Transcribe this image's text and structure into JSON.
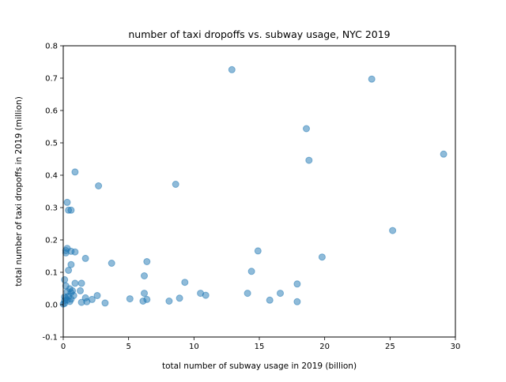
{
  "chart_data": {
    "type": "scatter",
    "title": "number of taxi dropoffs vs. subway usage, NYC 2019",
    "xlabel": "total number of subway usage in 2019 (billion)",
    "ylabel": "total number of taxi dropoffs in 2019 (million)",
    "xlim": [
      0,
      30
    ],
    "ylim": [
      -0.1,
      0.8
    ],
    "xticks": [
      "0",
      "5",
      "10",
      "15",
      "20",
      "25",
      "30"
    ],
    "yticks": [
      "-0.1",
      "0.0",
      "0.1",
      "0.2",
      "0.3",
      "0.4",
      "0.5",
      "0.6",
      "0.7",
      "0.8"
    ],
    "grid": false,
    "color": "#1f77b4",
    "points": [
      [
        12.9,
        0.726
      ],
      [
        23.6,
        0.697
      ],
      [
        18.6,
        0.544
      ],
      [
        29.1,
        0.465
      ],
      [
        18.8,
        0.446
      ],
      [
        0.9,
        0.41
      ],
      [
        8.6,
        0.372
      ],
      [
        2.7,
        0.367
      ],
      [
        0.3,
        0.316
      ],
      [
        0.4,
        0.292
      ],
      [
        0.6,
        0.292
      ],
      [
        25.2,
        0.229
      ],
      [
        0.3,
        0.174
      ],
      [
        0.2,
        0.167
      ],
      [
        0.6,
        0.165
      ],
      [
        0.9,
        0.163
      ],
      [
        0.2,
        0.16
      ],
      [
        14.9,
        0.166
      ],
      [
        19.8,
        0.147
      ],
      [
        1.7,
        0.143
      ],
      [
        6.4,
        0.133
      ],
      [
        3.7,
        0.128
      ],
      [
        0.6,
        0.124
      ],
      [
        0.4,
        0.106
      ],
      [
        14.4,
        0.103
      ],
      [
        6.2,
        0.089
      ],
      [
        0.1,
        0.077
      ],
      [
        9.3,
        0.069
      ],
      [
        17.9,
        0.064
      ],
      [
        1.4,
        0.066
      ],
      [
        0.9,
        0.066
      ],
      [
        0.2,
        0.058
      ],
      [
        0.5,
        0.049
      ],
      [
        0.7,
        0.043
      ],
      [
        1.3,
        0.043
      ],
      [
        0.3,
        0.04
      ],
      [
        0.6,
        0.037
      ],
      [
        10.5,
        0.035
      ],
      [
        14.1,
        0.035
      ],
      [
        16.6,
        0.035
      ],
      [
        6.2,
        0.035
      ],
      [
        10.9,
        0.029
      ],
      [
        2.6,
        0.028
      ],
      [
        0.8,
        0.028
      ],
      [
        0.4,
        0.026
      ],
      [
        0.1,
        0.024
      ],
      [
        0.2,
        0.021
      ],
      [
        1.7,
        0.021
      ],
      [
        8.9,
        0.02
      ],
      [
        5.1,
        0.018
      ],
      [
        0.6,
        0.017
      ],
      [
        6.4,
        0.016
      ],
      [
        2.2,
        0.016
      ],
      [
        0.3,
        0.015
      ],
      [
        15.8,
        0.014
      ],
      [
        0.1,
        0.012
      ],
      [
        6.1,
        0.011
      ],
      [
        8.1,
        0.011
      ],
      [
        0.5,
        0.01
      ],
      [
        17.9,
        0.009
      ],
      [
        1.8,
        0.009
      ],
      [
        1.4,
        0.007
      ],
      [
        3.2,
        0.005
      ],
      [
        0.1,
        0.004
      ],
      [
        0.0,
        0.002
      ]
    ]
  }
}
